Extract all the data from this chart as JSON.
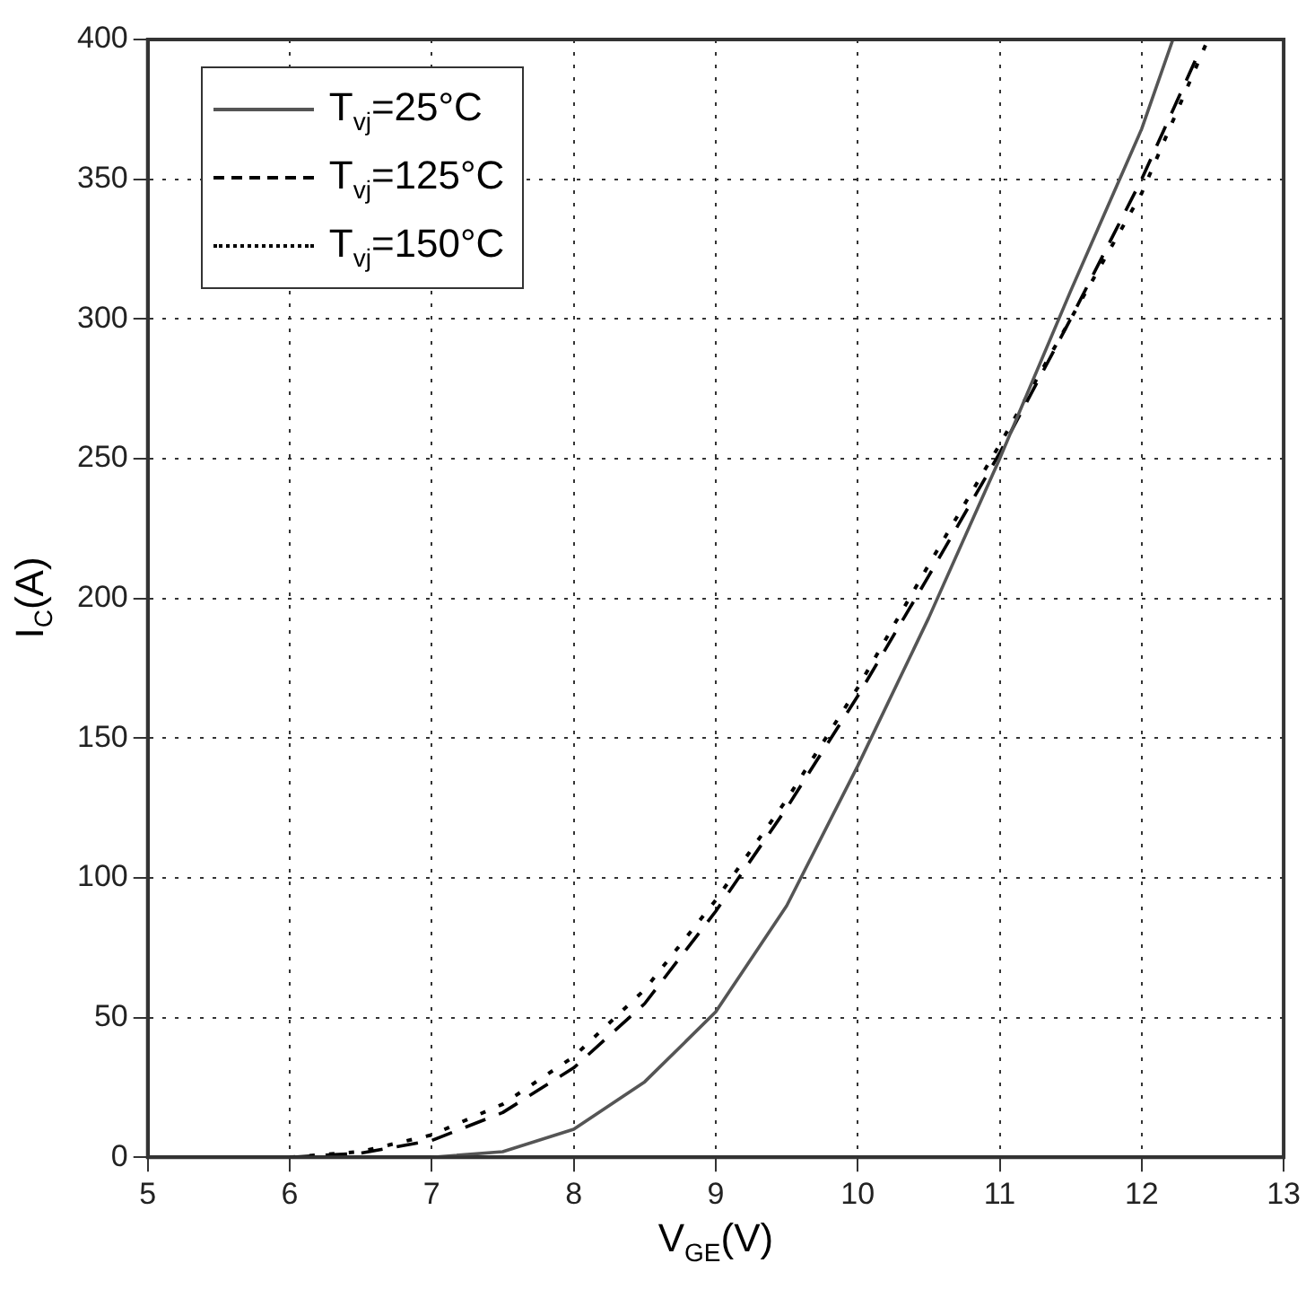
{
  "chart_data": {
    "type": "line",
    "xlabel": "V$_{GE}$(V)",
    "ylabel": "I$_{C}$(A)",
    "xlim": [
      5,
      13
    ],
    "xticks": [
      5,
      6,
      7,
      8,
      9,
      10,
      11,
      12,
      13
    ],
    "ylim": [
      0,
      400
    ],
    "yticks": [
      0,
      50,
      100,
      150,
      200,
      250,
      300,
      350,
      400
    ],
    "grid": true,
    "legend": "top left",
    "marker": "none",
    "series": [
      {
        "name": "T$_{vj}$=25°C",
        "color": "#555555",
        "line_style": "solid",
        "x": [
          7.0,
          7.5,
          8.0,
          8.5,
          9.0,
          9.5,
          10.0,
          10.5,
          11.0,
          11.5,
          12.0,
          12.22
        ],
        "values": [
          0,
          2,
          10,
          27,
          52,
          90,
          140,
          193,
          250,
          310,
          368,
          400
        ]
      },
      {
        "name": "T$_{vj}$=125°C",
        "color": "#000000",
        "line_style": "dashed",
        "x": [
          6.0,
          6.5,
          7.0,
          7.5,
          8.0,
          8.5,
          9.0,
          9.5,
          10.0,
          10.5,
          11.0,
          11.5,
          12.0,
          12.4
        ],
        "values": [
          0,
          1.5,
          6,
          16,
          32,
          55,
          88,
          125,
          165,
          208,
          252,
          300,
          350,
          395
        ]
      },
      {
        "name": "T$_{vj}$=150°C",
        "color": "#000000",
        "line_style": "dotted",
        "x": [
          6.0,
          6.5,
          7.0,
          7.5,
          8.0,
          8.5,
          9.0,
          9.5,
          10.0,
          10.5,
          11.0,
          11.5,
          12.0,
          12.45
        ],
        "values": [
          0,
          2,
          8,
          19,
          36,
          60,
          92,
          128,
          168,
          212,
          255,
          300,
          345,
          398
        ]
      }
    ]
  }
}
